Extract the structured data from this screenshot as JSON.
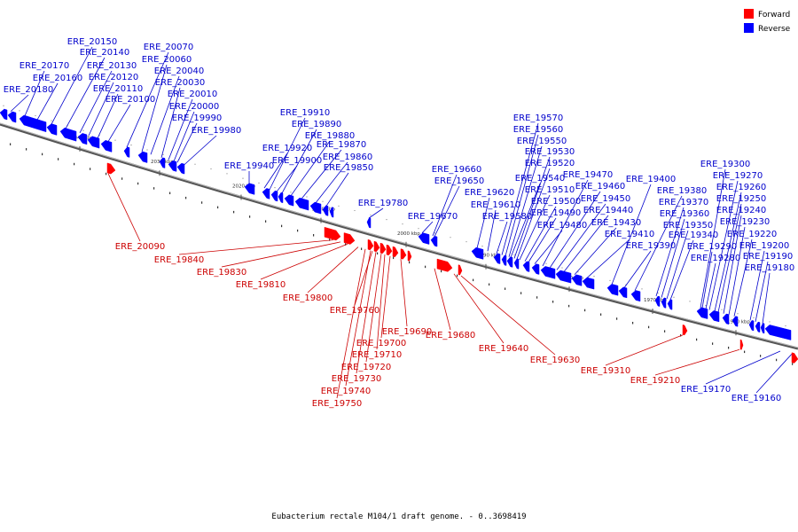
{
  "caption": "Eubacterium rectale M104/1 draft genome. - 0..3698419",
  "legend": [
    {
      "label": "Forward",
      "color": "#ff0000"
    },
    {
      "label": "Reverse",
      "color": "#0000ff"
    }
  ],
  "colors": {
    "forward_label": "#cc0000",
    "reverse_label": "#0000cc",
    "backbone": "#808080"
  },
  "ticks": [
    "2040 kbp",
    "2030 kbp",
    "2020 kbp",
    "2010 kbp",
    "2000 kbp",
    "1990 kbp",
    "1980 kbp",
    "1970 kbp",
    "1960 kbp"
  ],
  "reverse_genes": [
    "ERE_20180",
    "ERE_20170",
    "ERE_20160",
    "ERE_20150",
    "ERE_20140",
    "ERE_20130",
    "ERE_20120",
    "ERE_20110",
    "ERE_20100",
    "ERE_20070",
    "ERE_20060",
    "ERE_20040",
    "ERE_20030",
    "ERE_20010",
    "ERE_20000",
    "ERE_19990",
    "ERE_19980",
    "ERE_19940",
    "ERE_19920",
    "ERE_19910",
    "ERE_19900",
    "ERE_19890",
    "ERE_19880",
    "ERE_19870",
    "ERE_19860",
    "ERE_19850",
    "ERE_19780",
    "ERE_19670",
    "ERE_19660",
    "ERE_19650",
    "ERE_19620",
    "ERE_19610",
    "ERE_19580",
    "ERE_19570",
    "ERE_19560",
    "ERE_19550",
    "ERE_19540",
    "ERE_19530",
    "ERE_19520",
    "ERE_19510",
    "ERE_19500",
    "ERE_19490",
    "ERE_19480",
    "ERE_19470",
    "ERE_19460",
    "ERE_19450",
    "ERE_19440",
    "ERE_19430",
    "ERE_19410",
    "ERE_19400",
    "ERE_19390",
    "ERE_19380",
    "ERE_19370",
    "ERE_19360",
    "ERE_19350",
    "ERE_19340",
    "ERE_19300",
    "ERE_19290",
    "ERE_19280",
    "ERE_19270",
    "ERE_19260",
    "ERE_19250",
    "ERE_19240",
    "ERE_19230",
    "ERE_19220",
    "ERE_19200",
    "ERE_19190",
    "ERE_19180",
    "ERE_19170",
    "ERE_19160"
  ],
  "forward_genes": [
    "ERE_20090",
    "ERE_19840",
    "ERE_19830",
    "ERE_19810",
    "ERE_19800",
    "ERE_19760",
    "ERE_19690",
    "ERE_19700",
    "ERE_19710",
    "ERE_19720",
    "ERE_19730",
    "ERE_19740",
    "ERE_19750",
    "ERE_19680",
    "ERE_19640",
    "ERE_19630",
    "ERE_19310",
    "ERE_19210"
  ]
}
